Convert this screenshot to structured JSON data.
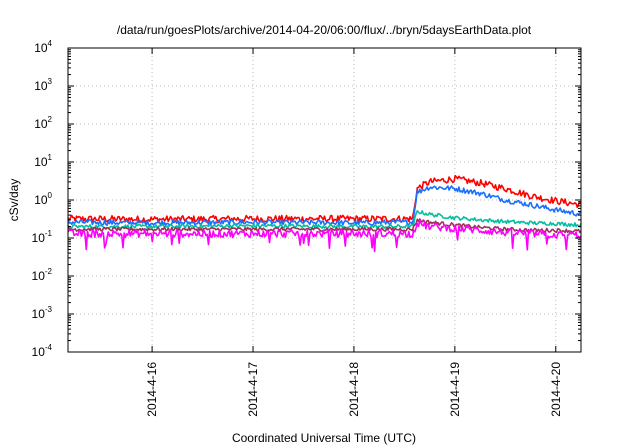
{
  "chart_data": {
    "type": "line",
    "title": "/data/run/goesPlots/archive/2014-04-20/06:00/flux/../bryn/5daysEarthData.plot",
    "xlabel": "Coordinated Universal Time (UTC)",
    "ylabel": "cSv/day",
    "yscale": "log",
    "ylim": [
      0.0001,
      10000
    ],
    "xlim": [
      "2014-04-15 04:00",
      "2014-04-20 06:00"
    ],
    "grid": true,
    "legend": "none",
    "y_ticks": [
      {
        "base": "10",
        "exp": "-4",
        "value": 0.0001
      },
      {
        "base": "10",
        "exp": "-3",
        "value": 0.001
      },
      {
        "base": "10",
        "exp": "-2",
        "value": 0.01
      },
      {
        "base": "10",
        "exp": "-1",
        "value": 0.1
      },
      {
        "base": "10",
        "exp": "0",
        "value": 1
      },
      {
        "base": "10",
        "exp": "1",
        "value": 10
      },
      {
        "base": "10",
        "exp": "2",
        "value": 100
      },
      {
        "base": "10",
        "exp": "3",
        "value": 1000
      },
      {
        "base": "10",
        "exp": "4",
        "value": 10000
      }
    ],
    "x_ticks": [
      {
        "label": "2014-4-16",
        "date": "2014-04-16"
      },
      {
        "label": "2014-4-17",
        "date": "2014-04-17"
      },
      {
        "label": "2014-4-18",
        "date": "2014-04-18"
      },
      {
        "label": "2014-4-19",
        "date": "2014-04-19"
      },
      {
        "label": "2014-4-20",
        "date": "2014-04-20"
      }
    ],
    "x": [
      "2014-04-15 04:00",
      "2014-04-16 00:00",
      "2014-04-17 00:00",
      "2014-04-18 00:00",
      "2014-04-18 14:00",
      "2014-04-18 15:00",
      "2014-04-18 18:00",
      "2014-04-19 00:00",
      "2014-04-19 06:00",
      "2014-04-19 12:00",
      "2014-04-19 18:00",
      "2014-04-20 00:00",
      "2014-04-20 06:00"
    ],
    "series": [
      {
        "color": "#ff0000",
        "values": [
          0.32,
          0.31,
          0.32,
          0.32,
          0.32,
          2.0,
          3.0,
          3.6,
          2.8,
          2.0,
          1.3,
          0.95,
          0.75
        ]
      },
      {
        "color": "#1a6fff",
        "values": [
          0.26,
          0.25,
          0.26,
          0.25,
          0.26,
          1.6,
          2.2,
          2.0,
          1.5,
          1.0,
          0.75,
          0.55,
          0.42
        ]
      },
      {
        "color": "#00c0a0",
        "values": [
          0.2,
          0.2,
          0.21,
          0.2,
          0.2,
          0.5,
          0.42,
          0.34,
          0.3,
          0.27,
          0.25,
          0.24,
          0.22
        ]
      },
      {
        "color": "#a0305a",
        "values": [
          0.17,
          0.17,
          0.17,
          0.17,
          0.17,
          0.3,
          0.26,
          0.22,
          0.19,
          0.17,
          0.16,
          0.16,
          0.15
        ]
      },
      {
        "color": "#ff00ff",
        "values": [
          0.13,
          0.13,
          0.13,
          0.13,
          0.13,
          0.25,
          0.2,
          0.18,
          0.16,
          0.14,
          0.13,
          0.12,
          0.12
        ]
      }
    ]
  }
}
